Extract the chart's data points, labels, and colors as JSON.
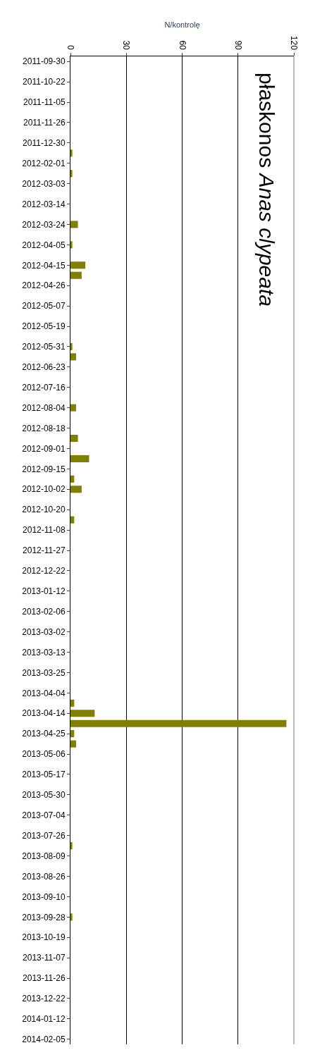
{
  "chart_data": {
    "type": "bar",
    "orientation": "horizontal",
    "title": "płaskonos Anas clypeata",
    "xlabel": "N/kontrolę",
    "categories": [
      "2011-09-30",
      null,
      "2011-10-22",
      null,
      "2011-11-05",
      null,
      "2011-11-26",
      null,
      "2011-12-30",
      null,
      "2012-02-01",
      null,
      "2012-03-03",
      null,
      "2012-03-14",
      null,
      "2012-03-24",
      null,
      "2012-04-05",
      null,
      "2012-04-15",
      null,
      "2012-04-26",
      null,
      "2012-05-07",
      null,
      "2012-05-19",
      null,
      "2012-05-31",
      null,
      "2012-06-23",
      null,
      "2012-07-16",
      null,
      "2012-08-04",
      null,
      "2012-08-18",
      null,
      "2012-09-01",
      null,
      "2012-09-15",
      null,
      "2012-10-02",
      null,
      "2012-10-20",
      null,
      "2012-11-08",
      null,
      "2012-11-27",
      null,
      "2012-12-22",
      null,
      "2013-01-12",
      null,
      "2013-02-06",
      null,
      "2013-03-02",
      null,
      "2013-03-13",
      null,
      "2013-03-25",
      null,
      "2013-04-04",
      null,
      "2013-04-14",
      null,
      "2013-04-25",
      null,
      "2013-05-06",
      null,
      "2013-05-17",
      null,
      "2013-05-30",
      null,
      "2013-07-04",
      null,
      "2013-07-26",
      null,
      "2013-08-09",
      null,
      "2013-08-26",
      null,
      "2013-09-10",
      null,
      "2013-09-28",
      null,
      "2013-10-19",
      null,
      "2013-11-07",
      null,
      "2013-11-26",
      null,
      "2013-12-22",
      null,
      "2014-01-12",
      null,
      "2014-02-05"
    ],
    "values": [
      0,
      0,
      0,
      0,
      0,
      0,
      0,
      0,
      0,
      1,
      0,
      1,
      0,
      0,
      0,
      0,
      4,
      0,
      1,
      0,
      8,
      6,
      0,
      0,
      0,
      0,
      0,
      0,
      1,
      3,
      0,
      0,
      0,
      0,
      3,
      0,
      0,
      4,
      0,
      10,
      0,
      2,
      6,
      0,
      0,
      2,
      0,
      0,
      0,
      0,
      0,
      0,
      0,
      0,
      0,
      0,
      0,
      0,
      0,
      0,
      0,
      0,
      0,
      2,
      13,
      116,
      2,
      3,
      0,
      0,
      0,
      0,
      0,
      0,
      0,
      0,
      0,
      1,
      0,
      0,
      0,
      0,
      0,
      0,
      1,
      0,
      0,
      0,
      0,
      0,
      0,
      0,
      0,
      0,
      0,
      0,
      0
    ],
    "color": "#808000",
    "xlim": [
      0,
      120
    ],
    "xticks": [
      0,
      30,
      60,
      90,
      120
    ],
    "grid": "x"
  }
}
